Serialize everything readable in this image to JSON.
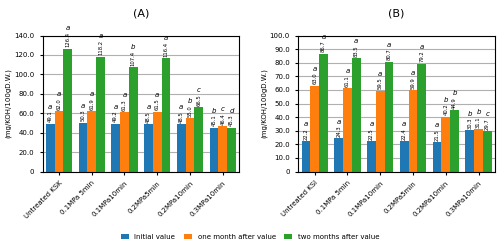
{
  "chart_data": [
    {
      "type": "bar",
      "title": "(A)",
      "ylabel": "(mg/KOH/100gD.W.)",
      "categories": [
        "Untreated KSK",
        "0.1MPa 5min",
        "0.1MPa10min",
        "0.2MPa5min",
        "0.2MPa10min",
        "0.3MPa10min"
      ],
      "series": [
        {
          "name": "Initial value",
          "values": [
            49.1,
            50.3,
            49.2,
            48.5,
            48.5,
            45.1
          ],
          "value_labels": [
            "49.1",
            "50.3",
            "49.2",
            "48.5",
            "48.5",
            "45.1"
          ],
          "significance": [
            "a",
            "a",
            "a",
            "a",
            "a",
            "b"
          ]
        },
        {
          "name": "one month after value",
          "values": [
            62.0,
            61.9,
            61.3,
            61.5,
            55.0,
            46.4
          ],
          "value_labels": [
            "62.0",
            "61.9",
            "61.3",
            "61.5",
            "55.0",
            "46.4"
          ],
          "significance": [
            "a",
            "a",
            "a",
            "a",
            "b",
            "c"
          ]
        },
        {
          "name": "two months after value",
          "values": [
            126.4,
            118.2,
            107.4,
            116.4,
            66.5,
            45.3
          ],
          "value_labels": [
            "126.4",
            "118.2",
            "107.4",
            "116.4",
            "66.5",
            "45.3"
          ],
          "significance": [
            "a",
            "a",
            "b",
            "a",
            "c",
            "d"
          ]
        }
      ],
      "ylim": [
        0,
        140
      ],
      "yticks": [
        0,
        {
          "value": 20,
          "label": "20.0"
        },
        {
          "value": 40,
          "label": "40.0"
        },
        {
          "value": 60,
          "label": "60.0"
        },
        {
          "value": 80,
          "label": "80.0"
        },
        {
          "value": 100,
          "label": "100.0"
        },
        {
          "value": 120,
          "label": "120.0"
        },
        {
          "value": 140,
          "label": "140.0"
        }
      ],
      "grid": true,
      "data_labels": true,
      "legend": "lower center"
    },
    {
      "type": "bar",
      "title": "(B)",
      "ylabel": "(mg/KOH/100gD.W.)",
      "categories": [
        "Untreated KSI",
        "0.1MPa 5min",
        "0.1MPa10min",
        "0.2MPa5min",
        "0.2MPa10min",
        "0.3MPa10min"
      ],
      "series": [
        {
          "name": "Initial value",
          "values": [
            22.2,
            24.3,
            22.5,
            22.4,
            21.5,
            30.3
          ],
          "value_labels": [
            "22.2",
            "24.3",
            "22.5",
            "22.4",
            "21.5",
            "30.3"
          ],
          "significance": [
            "a",
            "a",
            "a",
            "a",
            "a",
            "b"
          ]
        },
        {
          "name": "one month after value",
          "values": [
            63.0,
            61.1,
            59.5,
            59.9,
            40.2,
            31.1
          ],
          "value_labels": [
            "63.0",
            "61.1",
            "59.5",
            "59.9",
            "40.2",
            "31.1"
          ],
          "significance": [
            "a",
            "a",
            "a",
            "a",
            "b",
            "b"
          ]
        },
        {
          "name": "two months after value",
          "values": [
            86.7,
            83.5,
            80.7,
            79.2,
            44.9,
            29.7
          ],
          "value_labels": [
            "86.7",
            "83.5",
            "80.7",
            "79.2",
            "44.9",
            "29.7"
          ],
          "significance": [
            "a",
            "a",
            "a",
            "a",
            "b",
            "c"
          ]
        }
      ],
      "ylim": [
        0,
        100
      ],
      "yticks": [
        0,
        {
          "value": 10,
          "label": "10.0"
        },
        {
          "value": 20,
          "label": "20.0"
        },
        {
          "value": 30,
          "label": "30.0"
        },
        {
          "value": 40,
          "label": "40.0"
        },
        {
          "value": 50,
          "label": "50.0"
        },
        {
          "value": 60,
          "label": "60.0"
        },
        {
          "value": 70,
          "label": "70.0"
        },
        {
          "value": 80,
          "label": "80.0"
        },
        {
          "value": 90,
          "label": "90.0"
        },
        {
          "value": 100,
          "label": "100.0"
        }
      ],
      "grid": true,
      "data_labels": true,
      "legend": "lower center"
    }
  ]
}
